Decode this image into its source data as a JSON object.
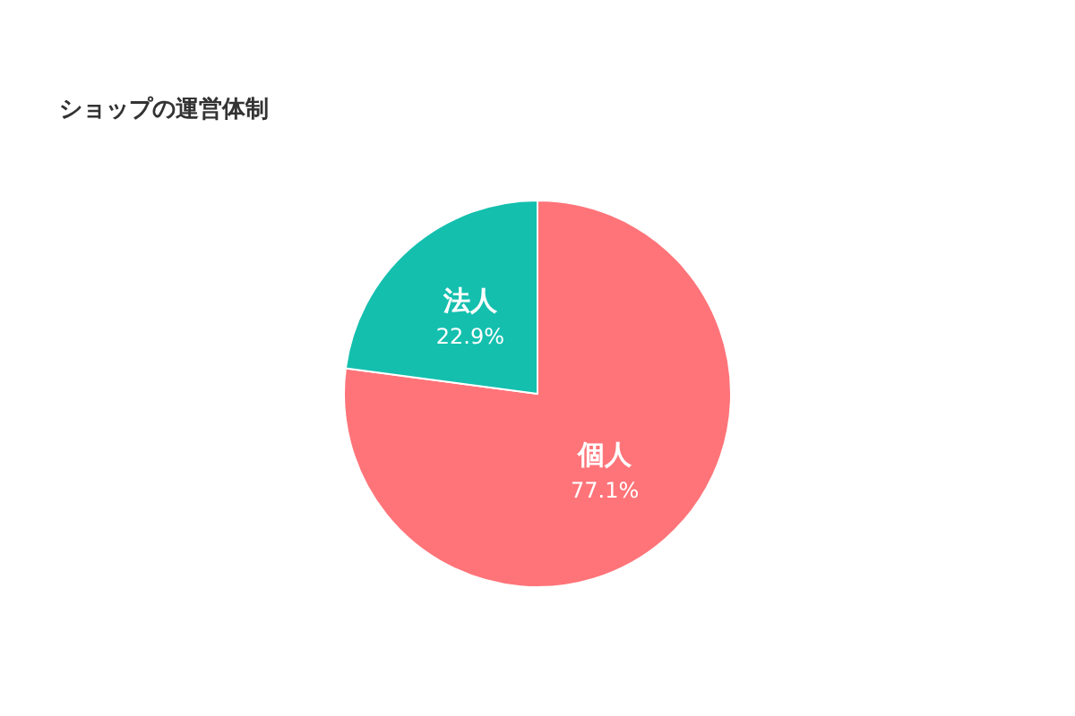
{
  "chart_data": {
    "type": "pie",
    "title": "ショップの運営体制",
    "categories": [
      "個人",
      "法人"
    ],
    "values": [
      77.1,
      22.9
    ],
    "colors": [
      "#ff7479",
      "#14bfae"
    ],
    "value_labels": [
      "77.1%",
      "22.9%"
    ],
    "legend": false
  }
}
